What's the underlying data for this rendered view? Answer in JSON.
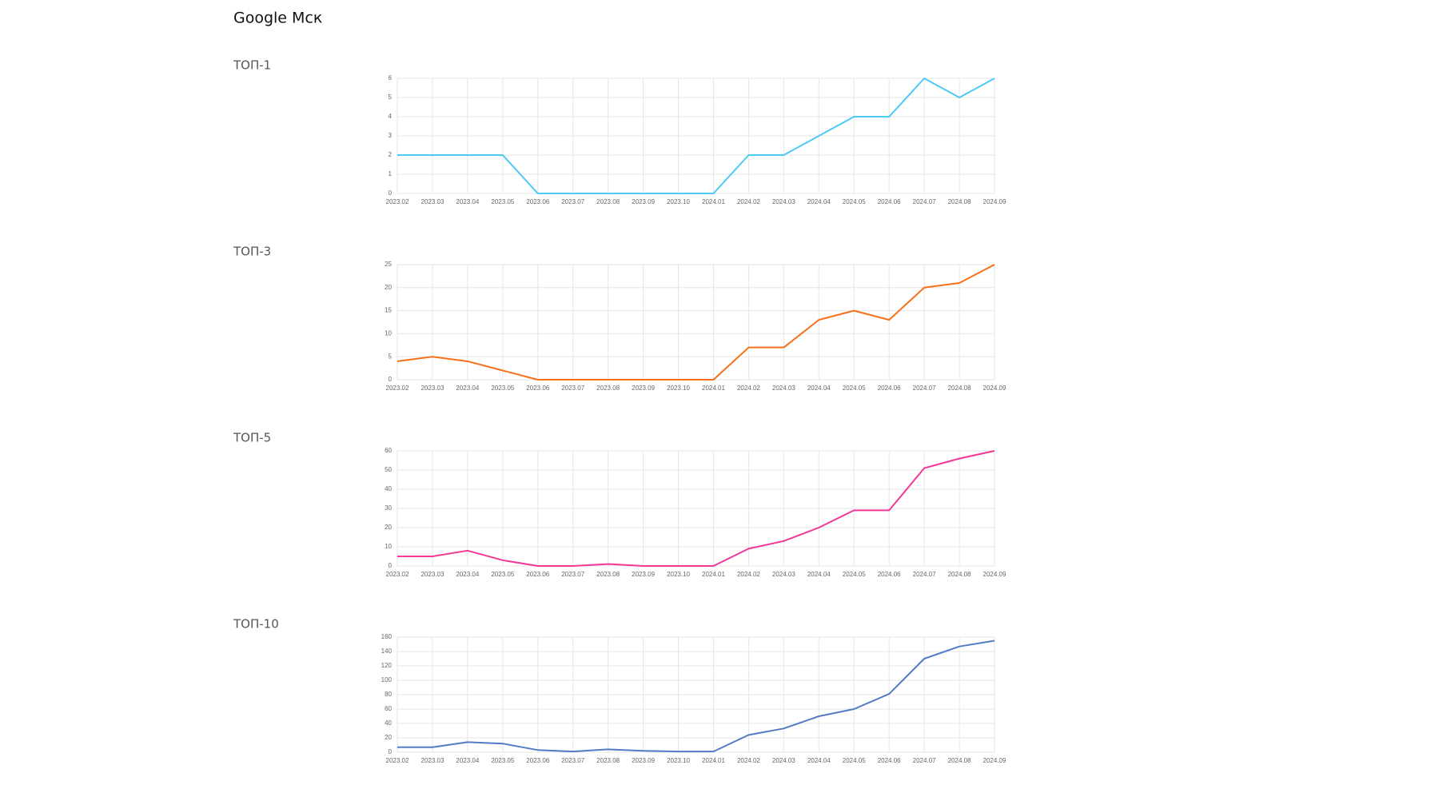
{
  "page_title": "Google Мск",
  "chart_data": [
    {
      "type": "line",
      "title": "ТОП-1",
      "categories": [
        "2023.02",
        "2023.03",
        "2023.04",
        "2023.05",
        "2023.06",
        "2023.07",
        "2023.08",
        "2023.09",
        "2023.10",
        "2024.01",
        "2024.02",
        "2024.03",
        "2024.04",
        "2024.05",
        "2024.06",
        "2024.07",
        "2024.08",
        "2024.09"
      ],
      "values": [
        2,
        2,
        2,
        2,
        0,
        0,
        0,
        0,
        0,
        0,
        2,
        2,
        3,
        4,
        4,
        6,
        5,
        6
      ],
      "color": "#4dc9f6",
      "ylim": [
        0,
        6
      ],
      "yticks": [
        0,
        1,
        2,
        3,
        4,
        5,
        6
      ],
      "grid": true
    },
    {
      "type": "line",
      "title": "ТОП-3",
      "categories": [
        "2023.02",
        "2023.03",
        "2023.04",
        "2023.05",
        "2023.06",
        "2023.07",
        "2023.08",
        "2023.09",
        "2023.10",
        "2024.01",
        "2024.02",
        "2024.03",
        "2024.04",
        "2024.05",
        "2024.06",
        "2024.07",
        "2024.08",
        "2024.09"
      ],
      "values": [
        4,
        5,
        4,
        2,
        0,
        0,
        0,
        0,
        0,
        0,
        7,
        7,
        13,
        15,
        13,
        20,
        21,
        25
      ],
      "color": "#f67019",
      "ylim": [
        0,
        25
      ],
      "yticks": [
        0,
        5,
        10,
        15,
        20,
        25
      ],
      "grid": true
    },
    {
      "type": "line",
      "title": "ТОП-5",
      "categories": [
        "2023.02",
        "2023.03",
        "2023.04",
        "2023.05",
        "2023.06",
        "2023.07",
        "2023.08",
        "2023.09",
        "2023.10",
        "2024.01",
        "2024.02",
        "2024.03",
        "2024.04",
        "2024.05",
        "2024.06",
        "2024.07",
        "2024.08",
        "2024.09"
      ],
      "values": [
        5,
        5,
        8,
        3,
        0,
        0,
        1,
        0,
        0,
        0,
        9,
        13,
        20,
        29,
        29,
        51,
        56,
        60
      ],
      "color": "#f53794",
      "ylim": [
        0,
        60
      ],
      "yticks": [
        0,
        10,
        20,
        30,
        40,
        50,
        60
      ],
      "grid": true
    },
    {
      "type": "line",
      "title": "ТОП-10",
      "categories": [
        "2023.02",
        "2023.03",
        "2023.04",
        "2023.05",
        "2023.06",
        "2023.07",
        "2023.08",
        "2023.09",
        "2023.10",
        "2024.01",
        "2024.02",
        "2024.03",
        "2024.04",
        "2024.05",
        "2024.06",
        "2024.07",
        "2024.08",
        "2024.09"
      ],
      "values": [
        7,
        7,
        14,
        12,
        3,
        1,
        4,
        2,
        1,
        1,
        24,
        33,
        50,
        60,
        81,
        130,
        147,
        155
      ],
      "color": "#537bc4",
      "ylim": [
        0,
        160
      ],
      "yticks": [
        0,
        20,
        40,
        60,
        80,
        100,
        120,
        140,
        160
      ],
      "grid": true
    }
  ]
}
